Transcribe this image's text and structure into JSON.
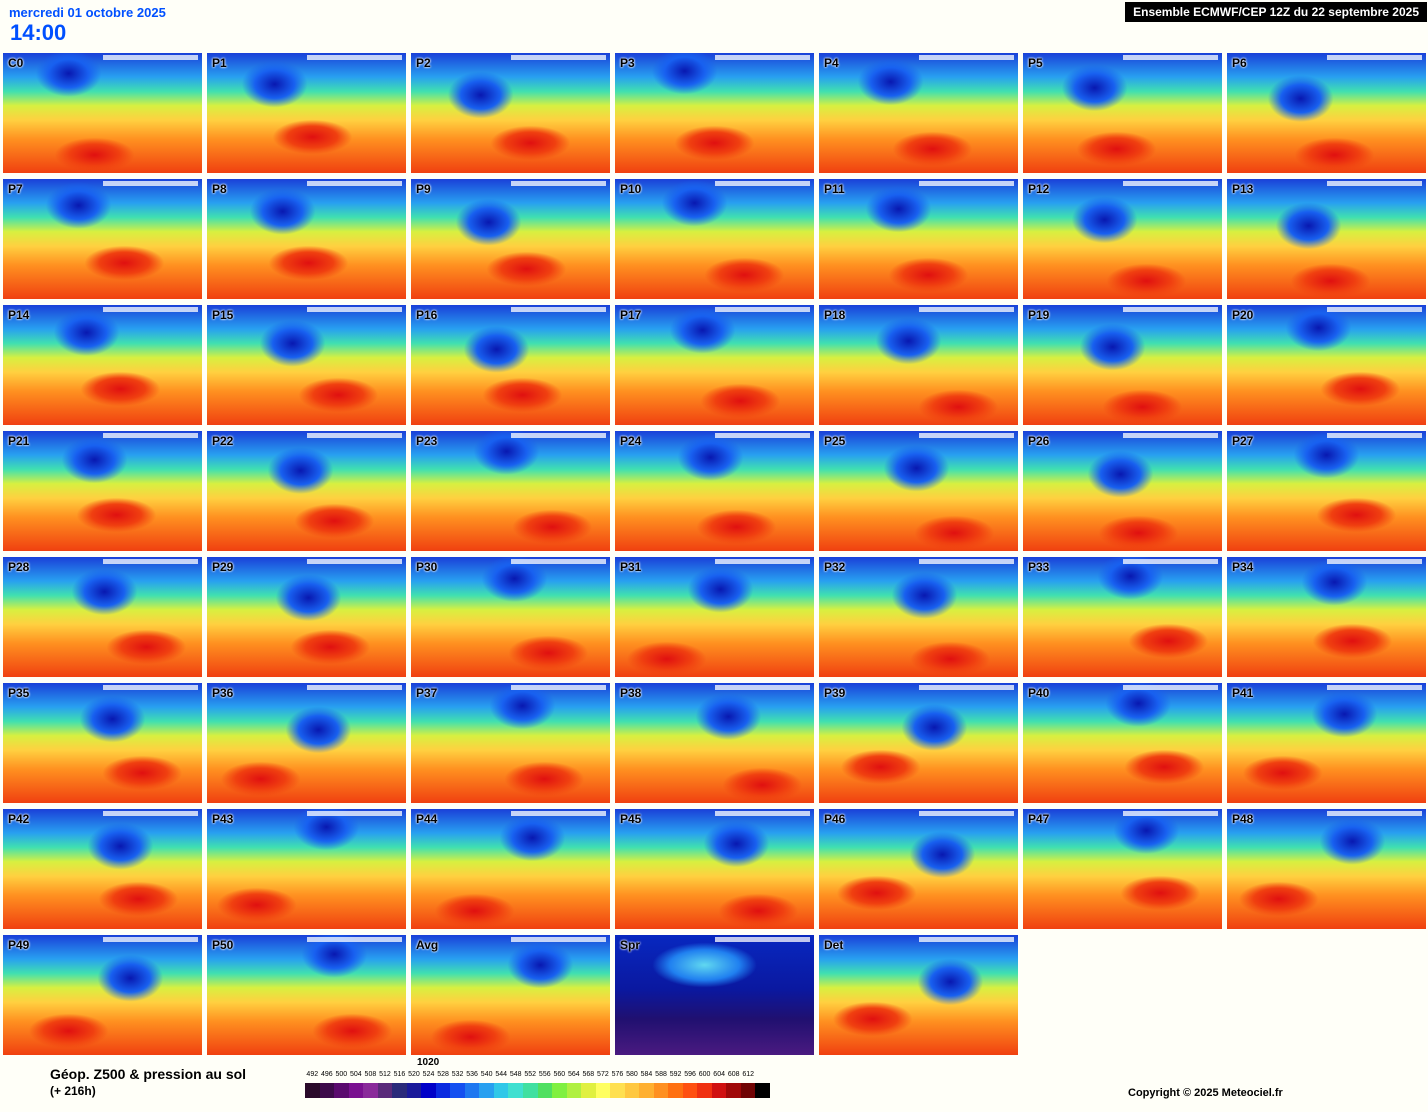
{
  "header": {
    "date": "mercredi 01 octobre 2025",
    "time": "14:00",
    "title": "Ensemble ECMWF/CEP 12Z du 22 septembre 2025"
  },
  "panels": [
    "C0",
    "P1",
    "P2",
    "P3",
    "P4",
    "P5",
    "P6",
    "P7",
    "P8",
    "P9",
    "P10",
    "P11",
    "P12",
    "P13",
    "P14",
    "P15",
    "P16",
    "P17",
    "P18",
    "P19",
    "P20",
    "P21",
    "P22",
    "P23",
    "P24",
    "P25",
    "P26",
    "P27",
    "P28",
    "P29",
    "P30",
    "P31",
    "P32",
    "P33",
    "P34",
    "P35",
    "P36",
    "P37",
    "P38",
    "P39",
    "P40",
    "P41",
    "P42",
    "P43",
    "P44",
    "P45",
    "P46",
    "P47",
    "P48",
    "P49",
    "P50",
    "Avg",
    "Spr",
    "Det"
  ],
  "footer": {
    "title": "Géop. Z500 & pression au sol",
    "lead": "(+ 216h)",
    "pressure": "1020",
    "copyright": "Copyright © 2025 Meteociel.fr"
  },
  "legend": {
    "labels": [
      "492",
      "496",
      "500",
      "504",
      "508",
      "512",
      "516",
      "520",
      "524",
      "528",
      "532",
      "536",
      "540",
      "544",
      "548",
      "552",
      "556",
      "560",
      "564",
      "568",
      "572",
      "576",
      "580",
      "584",
      "588",
      "592",
      "596",
      "600",
      "604",
      "608",
      "612"
    ],
    "colors": [
      "#2a0a2a",
      "#3d0a4a",
      "#5a0a6e",
      "#7a1090",
      "#8a2a9a",
      "#5a2a7a",
      "#2a2a7a",
      "#1a1a9a",
      "#0000c8",
      "#0a2ae0",
      "#1450f0",
      "#1e78f0",
      "#28a0f0",
      "#30c8e8",
      "#40e0d0",
      "#40e0a0",
      "#50e060",
      "#80f040",
      "#b0f040",
      "#e0f040",
      "#ffff60",
      "#ffe050",
      "#ffc840",
      "#ffb030",
      "#ff9020",
      "#ff7010",
      "#ff5010",
      "#f03010",
      "#d01010",
      "#a00808",
      "#700404",
      "#000000"
    ]
  }
}
